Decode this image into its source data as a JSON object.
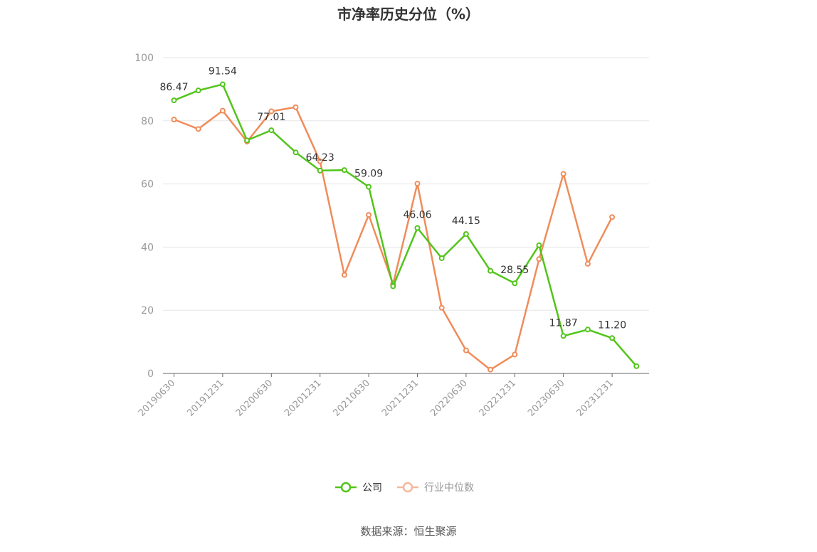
{
  "title": "市净率历史分位（%）",
  "source": "数据来源：恒生聚源",
  "colors": {
    "company": "#52c41a",
    "industry": "#f08c5a",
    "grid": "#e6e6e6",
    "axis": "#666666"
  },
  "chart_data": {
    "type": "line",
    "title": "市净率历史分位（%）",
    "ylim": [
      0,
      100
    ],
    "yticks": [
      "0",
      "20",
      "40",
      "60",
      "80",
      "100"
    ],
    "x": [
      "20190630",
      "20190930",
      "20191231",
      "20200331",
      "20200630",
      "20200930",
      "20201231",
      "20210331",
      "20210630",
      "20210930",
      "20211231",
      "20220331",
      "20220630",
      "20220930",
      "20221231",
      "20230331",
      "20230630",
      "20230930",
      "20231231",
      "20240331"
    ],
    "xtick_labels": [
      "20190630",
      "20191231",
      "20200630",
      "20201231",
      "20210630",
      "20211231",
      "20220630",
      "20221231",
      "20230630",
      "20231231"
    ],
    "grid": true,
    "legend_position": "bottom",
    "series": [
      {
        "name": "公司",
        "values": [
          86.47,
          89.6,
          91.54,
          73.8,
          77.01,
          70.0,
          64.23,
          64.4,
          59.09,
          27.6,
          46.06,
          36.5,
          44.15,
          32.5,
          28.55,
          40.6,
          11.87,
          13.9,
          11.2,
          2.3
        ],
        "labels": [
          "86.47",
          "",
          "91.54",
          "",
          "77.01",
          "",
          "64.23",
          "",
          "59.09",
          "",
          "46.06",
          "",
          "44.15",
          "",
          "28.55",
          "",
          "11.87",
          "",
          "11.20",
          ""
        ]
      },
      {
        "name": "行业中位数",
        "values": [
          80.4,
          77.4,
          83.2,
          73.4,
          83.0,
          84.3,
          67.2,
          31.2,
          50.2,
          28.3,
          60.1,
          20.8,
          7.3,
          1.2,
          6.0,
          36.2,
          63.2,
          34.7,
          49.5,
          null
        ],
        "labels": []
      }
    ]
  }
}
